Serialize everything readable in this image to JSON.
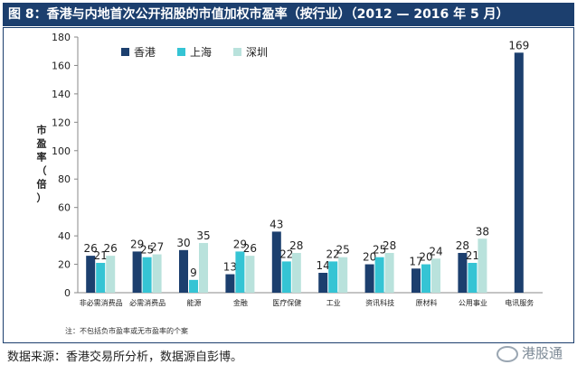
{
  "title": "图 8：香港与内地首次公开招股的市值加权市盈率（按行业）（2012 — 2016 年 5 月）",
  "source": "数据来源：香港交易所分析，数据源自彭博。",
  "watermark": "港股通",
  "note": "注：不包括负市盈率或无市盈率的个案",
  "colors": {
    "hk": "#1c3f6e",
    "sh": "#35c4d4",
    "sz": "#b9e2dc",
    "axis": "#888888",
    "frame": "#1c3f6e"
  },
  "chart_data": {
    "type": "bar",
    "ylabel": "市盈率（倍）",
    "ylim": [
      0,
      180
    ],
    "yticks": [
      0,
      20,
      40,
      60,
      80,
      100,
      120,
      140,
      160,
      180
    ],
    "legend_position": "top-left",
    "grid": false,
    "categories": [
      "非必需消费品",
      "必需消费品",
      "能源",
      "金融",
      "医疗保健",
      "工业",
      "资讯科技",
      "原材料",
      "公用事业",
      "电讯服务"
    ],
    "series": [
      {
        "name": "香港",
        "values": [
          26,
          29,
          30,
          13,
          43,
          14,
          20,
          17,
          28,
          169
        ]
      },
      {
        "name": "上海",
        "values": [
          21,
          25,
          9,
          29,
          22,
          22,
          25,
          20,
          21,
          null
        ]
      },
      {
        "name": "深圳",
        "values": [
          26,
          27,
          35,
          26,
          28,
          25,
          28,
          24,
          38,
          null
        ]
      }
    ]
  }
}
